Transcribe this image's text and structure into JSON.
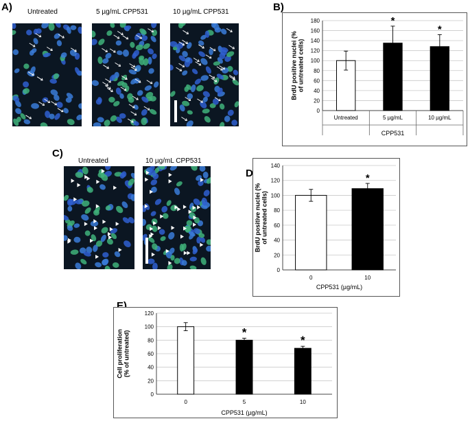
{
  "panels": {
    "A": {
      "letter": "A)",
      "labels": [
        "Untreated",
        "5 µg/mL CPP531",
        "10 µg/mL CPP531"
      ]
    },
    "C": {
      "letter": "C)",
      "labels": [
        "Untreated",
        "10 µg/mL CPP531"
      ]
    },
    "B": {
      "letter": "B)"
    },
    "D": {
      "letter": "D)"
    },
    "E": {
      "letter": "E)"
    }
  },
  "chart_data": [
    {
      "panel": "B",
      "type": "bar",
      "categories": [
        "Untreated",
        "5 µg/mL",
        "10 µg/mL"
      ],
      "group_label": "CPP531",
      "values": [
        100,
        135,
        128
      ],
      "errors": [
        19,
        34,
        24
      ],
      "significance": [
        "",
        "*",
        "*"
      ],
      "colors": [
        "#ffffff",
        "#000000",
        "#000000"
      ],
      "ylabel": "BrdU positive nuclei (% of untreated cells)",
      "ylim": [
        0,
        180
      ],
      "yticks": [
        0,
        20,
        40,
        60,
        80,
        100,
        120,
        140,
        160,
        180
      ],
      "grid": true
    },
    {
      "panel": "D",
      "type": "bar",
      "categories": [
        "0",
        "10"
      ],
      "values": [
        100,
        109
      ],
      "errors": [
        8,
        7
      ],
      "significance": [
        "",
        "*"
      ],
      "colors": [
        "#ffffff",
        "#000000"
      ],
      "xlabel": "CPP531 (µg/mL)",
      "ylabel": "BrdU positive nuclei (% of untreated cells)",
      "ylim": [
        0,
        140
      ],
      "yticks": [
        0,
        20,
        40,
        60,
        80,
        100,
        120,
        140
      ],
      "grid": true
    },
    {
      "panel": "E",
      "type": "bar",
      "categories": [
        "0",
        "5",
        "10"
      ],
      "values": [
        100,
        80,
        68
      ],
      "errors": [
        6,
        3,
        3
      ],
      "significance": [
        "",
        "*",
        "*"
      ],
      "colors": [
        "#ffffff",
        "#000000",
        "#000000"
      ],
      "xlabel": "CPP531 (µg/mL)",
      "ylabel": "Cell proliferation (% of untreated)",
      "ylim": [
        0,
        120
      ],
      "yticks": [
        0,
        20,
        40,
        60,
        80,
        100,
        120
      ],
      "grid": true
    }
  ]
}
